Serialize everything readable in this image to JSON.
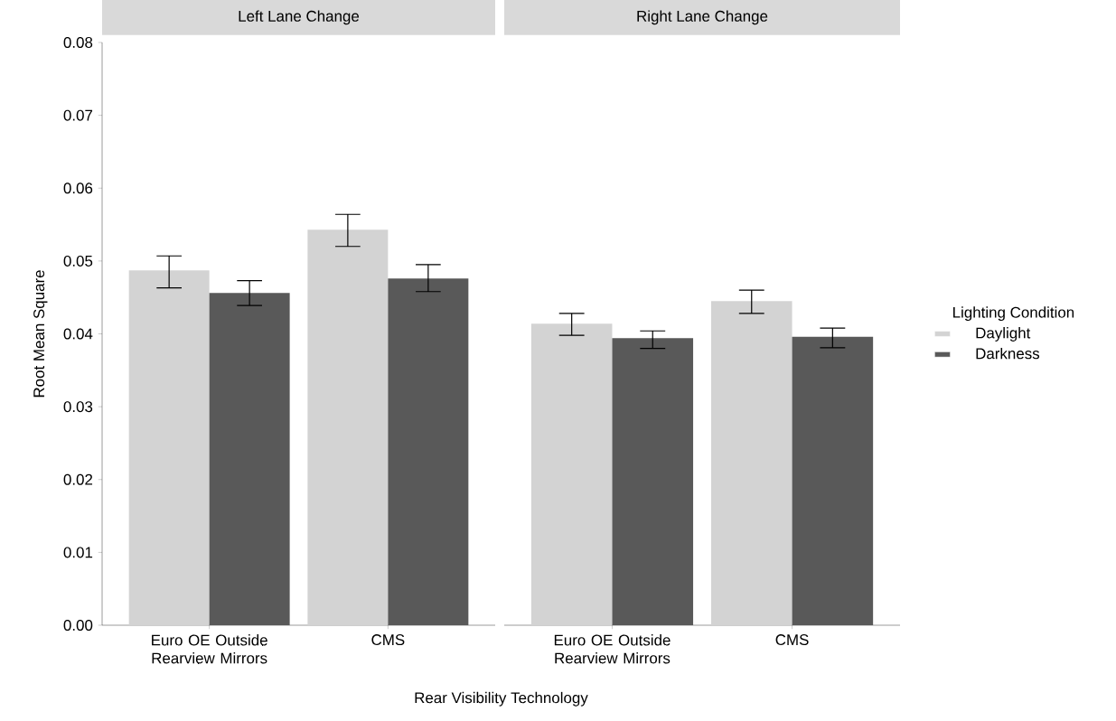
{
  "chart_data": [
    {
      "type": "bar",
      "title": "Left Lane Change",
      "xlabel": "Rear Visibility Technology",
      "ylabel": "Root Mean Square",
      "categories": [
        "Euro OE Outside Rearview Mirrors",
        "CMS"
      ],
      "series": [
        {
          "color": "#d3d3d3",
          "values": [
            0.0487,
            0.0543
          ],
          "errors": [
            [
              0.0463,
              0.0507
            ],
            [
              0.052,
              0.0564
            ]
          ]
        },
        {
          "color": "#595959",
          "values": [
            0.0456,
            0.0476
          ],
          "errors": [
            [
              0.0439,
              0.0473
            ],
            [
              0.0458,
              0.0495
            ]
          ]
        }
      ],
      "ylim": [
        0,
        0.08
      ],
      "yticks": [
        {
          "value": 0,
          "label": "0.00"
        },
        {
          "value": 0.01,
          "label": "0.01"
        },
        {
          "value": 0.02,
          "label": "0.02"
        },
        {
          "value": 0.03,
          "label": "0.03"
        },
        {
          "value": 0.04,
          "label": "0.04"
        },
        {
          "value": 0.05,
          "label": "0.05"
        },
        {
          "value": 0.06,
          "label": "0.06"
        },
        {
          "value": 0.07,
          "label": "0.07"
        },
        {
          "value": 0.08,
          "label": "0.08"
        }
      ],
      "grid": false
    },
    {
      "type": "bar",
      "title": "Right Lane Change",
      "legend_title": "Lighting Condition",
      "categories": [
        "Euro OE Outside Rearview Mirrors",
        "CMS"
      ],
      "series": [
        {
          "name": "Daylight",
          "color": "#d3d3d3",
          "values": [
            0.0414,
            0.0445
          ],
          "errors": [
            [
              0.0398,
              0.0428
            ],
            [
              0.0428,
              0.046
            ]
          ]
        },
        {
          "name": "Darkness",
          "color": "#595959",
          "values": [
            0.0394,
            0.0396
          ],
          "errors": [
            [
              0.038,
              0.0404
            ],
            [
              0.0381,
              0.0408
            ]
          ]
        }
      ],
      "ylim": [
        0,
        0.08
      ],
      "tick_labels": "x",
      "legend": "right",
      "grid": false
    }
  ]
}
